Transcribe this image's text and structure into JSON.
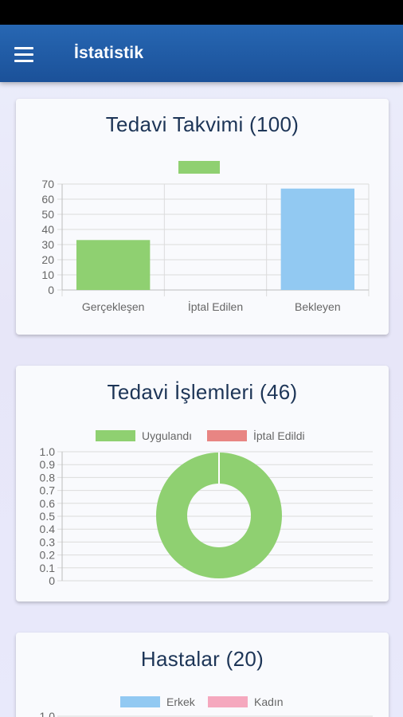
{
  "app_bar": {
    "title": "İstatistik",
    "menu_icon": "hamburger-menu-icon"
  },
  "colors": {
    "app_bar": "#2266b0",
    "green": "#8fd071",
    "blue": "#92c9f2",
    "red": "#e88583",
    "pink": "#f5a8be",
    "title": "#1d3557"
  },
  "cards": [
    {
      "title": "Tedavi Takvimi (100)",
      "chart_data": {
        "type": "bar",
        "categories": [
          "Gerçekleşen",
          "İptal Edilen",
          "Bekleyen"
        ],
        "values": [
          33,
          0,
          67
        ],
        "colors": [
          "#8fd071",
          "#8fd071",
          "#92c9f2"
        ],
        "legend": [
          {
            "name": "",
            "color": "#8fd071"
          }
        ],
        "ylim": [
          0,
          70
        ],
        "yticks": [
          "0",
          "10",
          "20",
          "30",
          "40",
          "50",
          "60",
          "70"
        ],
        "grid": true
      }
    },
    {
      "title": "Tedavi İşlemleri (46)",
      "chart_data": {
        "type": "pie",
        "doughnut": true,
        "series": [
          {
            "name": "Uygulandı",
            "value": 46,
            "color": "#8fd071"
          },
          {
            "name": "İptal Edildi",
            "value": 0,
            "color": "#e88583"
          }
        ],
        "legend": "top",
        "ylim": [
          0,
          1.0
        ],
        "yticks": [
          "0",
          "0.1",
          "0.2",
          "0.3",
          "0.4",
          "0.5",
          "0.6",
          "0.7",
          "0.8",
          "0.9",
          "1.0"
        ],
        "grid": true
      }
    },
    {
      "title": "Hastalar (20)",
      "chart_data": {
        "type": "pie",
        "series": [
          {
            "name": "Erkek",
            "color": "#92c9f2"
          },
          {
            "name": "Kadın",
            "color": "#f5a8be"
          }
        ],
        "legend": "top",
        "yticks": [
          "1.0"
        ]
      }
    }
  ]
}
